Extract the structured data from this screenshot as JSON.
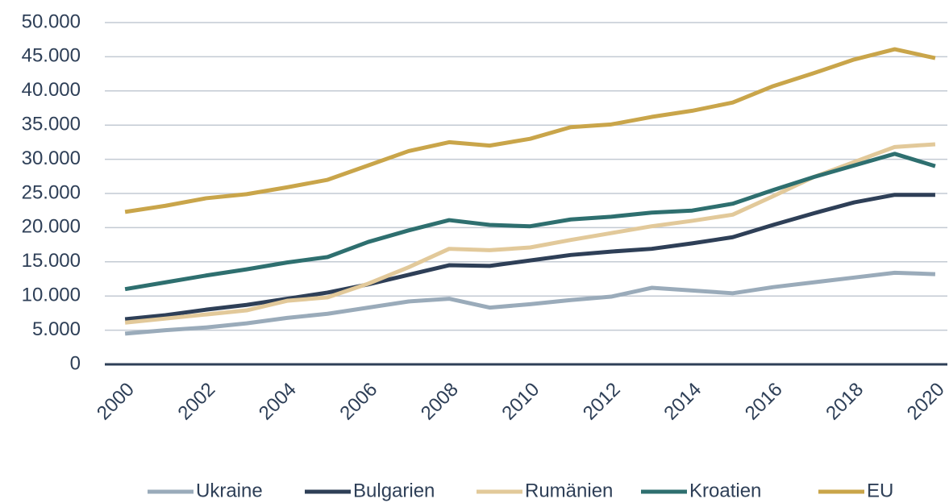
{
  "chart_data": {
    "type": "line",
    "x": [
      2000,
      2001,
      2002,
      2003,
      2004,
      2005,
      2006,
      2007,
      2008,
      2009,
      2010,
      2011,
      2012,
      2013,
      2014,
      2015,
      2016,
      2017,
      2018,
      2019,
      2020
    ],
    "series": [
      {
        "name": "Ukraine",
        "color": "#9aabba",
        "values": [
          4500,
          5000,
          5400,
          6000,
          6800,
          7400,
          8300,
          9200,
          9600,
          8300,
          8800,
          9400,
          9900,
          11200,
          10800,
          10400,
          11300,
          12000,
          12700,
          13400,
          13200
        ]
      },
      {
        "name": "Bulgarien",
        "color": "#2e3f57",
        "values": [
          6600,
          7200,
          8000,
          8700,
          9600,
          10500,
          11700,
          13100,
          14500,
          14400,
          15200,
          16000,
          16500,
          16900,
          17700,
          18600,
          20400,
          22100,
          23700,
          24800,
          24800
        ]
      },
      {
        "name": "Rumänien",
        "color": "#e2c99a",
        "values": [
          6100,
          6700,
          7300,
          7900,
          9300,
          9800,
          11800,
          14200,
          16900,
          16700,
          17100,
          18200,
          19200,
          20200,
          21000,
          21900,
          24600,
          27400,
          29600,
          31800,
          32200
        ]
      },
      {
        "name": "Kroatien",
        "color": "#2e6f6f",
        "values": [
          11000,
          12000,
          13000,
          13900,
          14900,
          15700,
          17900,
          19600,
          21100,
          20400,
          20200,
          21200,
          21600,
          22200,
          22500,
          23500,
          25500,
          27400,
          29100,
          30800,
          29000
        ]
      },
      {
        "name": "EU",
        "color": "#c9a54a",
        "values": [
          22300,
          23200,
          24300,
          24900,
          25900,
          27000,
          29100,
          31200,
          32500,
          32000,
          33000,
          34700,
          35100,
          36200,
          37100,
          38300,
          40700,
          42600,
          44600,
          46100,
          44800
        ]
      }
    ],
    "xlim": [
      1999.5,
      2020.3
    ],
    "xticks": [
      2000,
      2002,
      2004,
      2006,
      2008,
      2010,
      2012,
      2014,
      2016,
      2018,
      2020
    ],
    "ylim": [
      0,
      50000
    ],
    "yticks": [
      0,
      {
        "value": 5000,
        "label": "5.000"
      },
      {
        "value": 10000,
        "label": "10.000"
      },
      {
        "value": 15000,
        "label": "15.000"
      },
      {
        "value": 20000,
        "label": "20.000"
      },
      {
        "value": 25000,
        "label": "25.000"
      },
      {
        "value": 30000,
        "label": "30.000"
      },
      {
        "value": 35000,
        "label": "35.000"
      },
      {
        "value": 40000,
        "label": "40.000"
      },
      {
        "value": 45000,
        "label": "45.000"
      },
      {
        "value": 50000,
        "label": "50.000"
      }
    ],
    "grid": true,
    "legend": "bottom"
  }
}
